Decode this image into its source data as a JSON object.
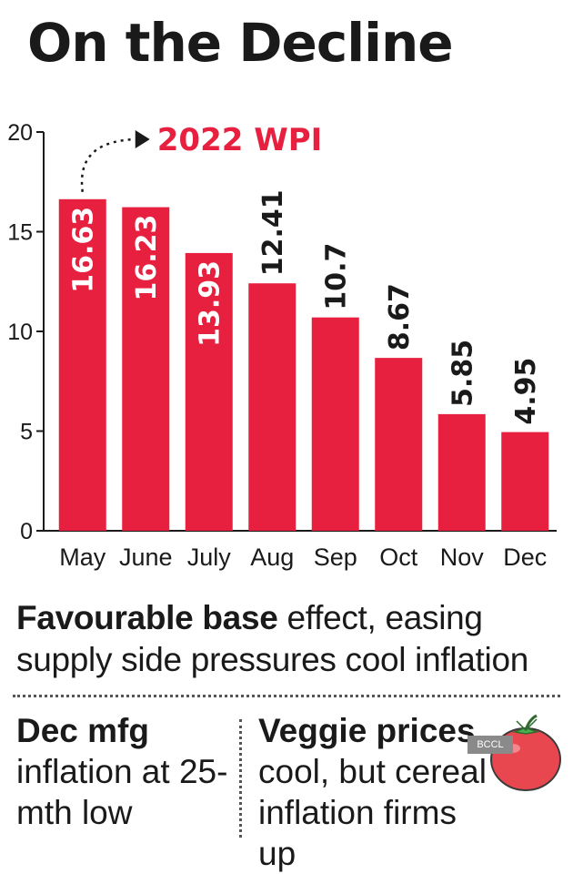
{
  "title": "On the Decline",
  "chart_data": {
    "type": "bar",
    "categories": [
      "May",
      "June",
      "July",
      "Aug",
      "Sep",
      "Oct",
      "Nov",
      "Dec"
    ],
    "values": [
      16.63,
      16.23,
      13.93,
      12.41,
      10.7,
      8.67,
      5.85,
      4.95
    ],
    "value_labels": [
      "16.63",
      "16.23",
      "13.93",
      "12.41",
      "10.7",
      "8.67",
      "5.85",
      "4.95"
    ],
    "annotation": "2022 WPI",
    "y_ticks": [
      "0",
      "5",
      "10",
      "15",
      "20"
    ],
    "ylim": [
      0,
      20
    ],
    "grid": false,
    "bar_color": "#e8203f",
    "annotation_color": "#e8203f"
  },
  "headline": {
    "bold": "Favourable base",
    "rest": " effect, easing supply side pressures cool inflation"
  },
  "left_note": {
    "lead": "Dec mfg",
    "rest": "inflation at 25-mth low"
  },
  "right_note": {
    "lead": "Veggie prices",
    "rest": "cool, but cereal inflation firms up"
  },
  "watermark": "BCCL",
  "icon": "tomato-icon"
}
